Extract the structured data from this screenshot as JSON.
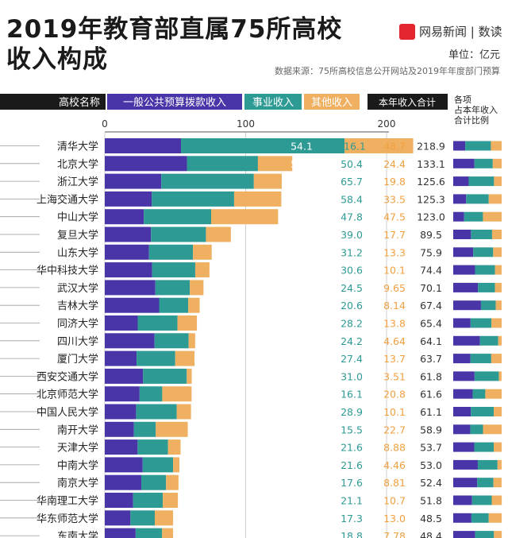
{
  "header": {
    "title_line1": "2019年教育部直属75所高校",
    "title_line2": "收入构成",
    "brand": "网易新闻 | 数读",
    "logo_text": "网易",
    "unit": "单位：亿元",
    "source": "数据来源：75所高校信息公开网站及2019年年度部门预算"
  },
  "legend": {
    "university": "高校名称",
    "gov": "一般公共预算拨款收入",
    "business": "事业收入",
    "other": "其他收入",
    "total": "本年收入合计",
    "share": "各项占本年收入合计比例"
  },
  "colors": {
    "gov": "#4a35a8",
    "business": "#2e9a94",
    "other": "#f0b061",
    "header_bg": "#1a1a1a",
    "brand": "#e3262e"
  },
  "chart_data": {
    "type": "bar",
    "stacked": true,
    "orientation": "horizontal",
    "x_ticks": [
      0,
      100,
      200
    ],
    "xlim": [
      0,
      200
    ],
    "categories": [
      "清华大学",
      "北京大学",
      "浙江大学",
      "上海交通大学",
      "中山大学",
      "复旦大学",
      "山东大学",
      "华中科技大学",
      "武汉大学",
      "吉林大学",
      "同济大学",
      "四川大学",
      "厦门大学",
      "西安交通大学",
      "北京师范大学",
      "中国人民大学",
      "南开大学",
      "天津大学",
      "中南大学",
      "南京大学",
      "华南理工大学",
      "华东师范大学",
      "东南大学"
    ],
    "series": [
      {
        "name": "一般公共预算拨款收入",
        "values": [
          "54.1",
          "58.3",
          "40.1",
          "33.4",
          "27.7",
          "32.8",
          "31.4",
          "33.6",
          "35.9",
          "38.6",
          "23.4",
          "35.3",
          "22.6",
          "27.2",
          "24.7",
          "22.2",
          "20.7",
          "23.3",
          "26.9",
          "25.9",
          "20.1",
          "18.2",
          "21.9"
        ]
      },
      {
        "name": "事业收入",
        "values": [
          "116.1",
          "50.4",
          "65.7",
          "58.4",
          "47.8",
          "39.0",
          "31.2",
          "30.6",
          "24.5",
          "20.6",
          "28.2",
          "24.2",
          "27.4",
          "31.0",
          "16.1",
          "28.9",
          "15.5",
          "21.6",
          "21.6",
          "17.6",
          "21.1",
          "17.3",
          "18.8"
        ]
      },
      {
        "name": "其他收入",
        "values": [
          "48.7",
          "24.4",
          "19.8",
          "33.5",
          "47.5",
          "17.7",
          "13.3",
          "10.1",
          "9.65",
          "8.14",
          "13.8",
          "4.64",
          "13.7",
          "3.51",
          "20.8",
          "10.1",
          "22.7",
          "8.88",
          "4.46",
          "8.81",
          "10.7",
          "13.0",
          "7.78"
        ]
      }
    ],
    "totals": [
      "218.9",
      "133.1",
      "125.6",
      "125.3",
      "123.0",
      "89.5",
      "75.9",
      "74.4",
      "70.1",
      "67.4",
      "65.4",
      "64.1",
      "63.7",
      "61.8",
      "61.6",
      "61.1",
      "58.9",
      "53.7",
      "53.0",
      "52.4",
      "51.8",
      "48.5",
      "48.4"
    ]
  }
}
